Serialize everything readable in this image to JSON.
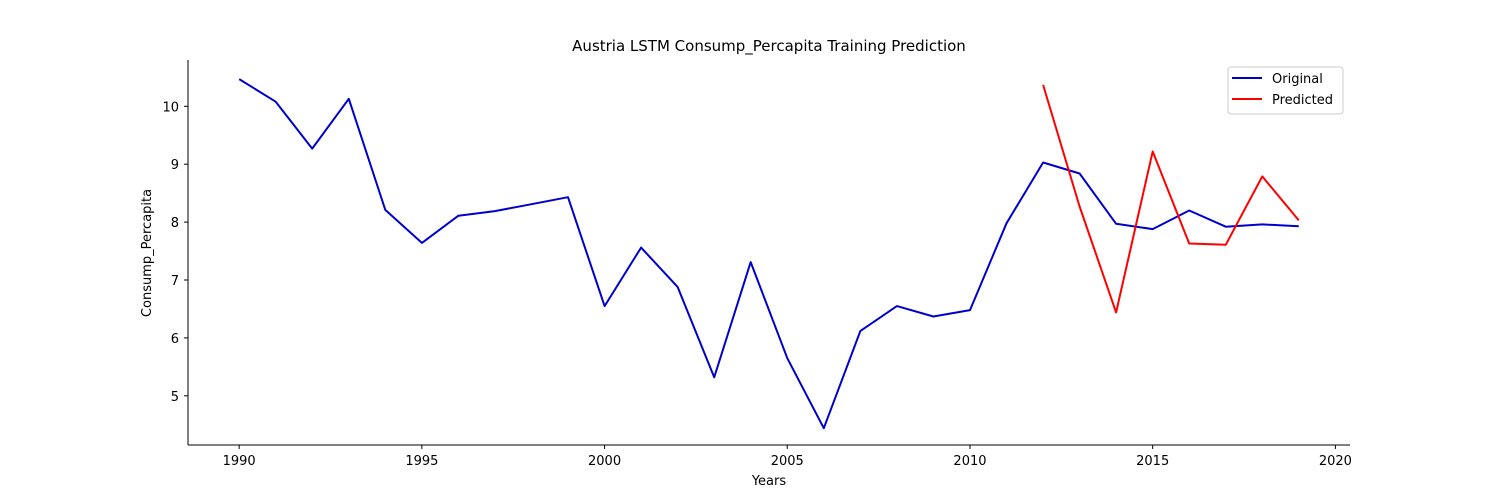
{
  "chart_data": {
    "type": "line",
    "title": "Austria LSTM Consump_Percapita Training Prediction",
    "xlabel": "Years",
    "ylabel": "Consump_Percapita",
    "xlim": [
      1988.6,
      2020.4
    ],
    "ylim": [
      4.15,
      10.8
    ],
    "x_ticks": [
      1990,
      1995,
      2000,
      2005,
      2010,
      2015,
      2020
    ],
    "y_ticks": [
      5,
      6,
      7,
      8,
      9,
      10
    ],
    "grid": false,
    "legend_position": "top-right",
    "series": [
      {
        "name": "Original",
        "color": "#0000cc",
        "x": [
          1990,
          1991,
          1992,
          1993,
          1994,
          1995,
          1996,
          1997,
          1998,
          1999,
          2000,
          2001,
          2002,
          2003,
          2004,
          2005,
          2006,
          2007,
          2008,
          2009,
          2010,
          2011,
          2012,
          2013,
          2014,
          2015,
          2016,
          2017,
          2018,
          2019
        ],
        "values": [
          10.47,
          10.08,
          9.27,
          10.13,
          8.21,
          7.64,
          8.11,
          8.19,
          8.31,
          8.43,
          6.55,
          7.56,
          6.88,
          5.32,
          7.31,
          5.65,
          4.44,
          6.12,
          6.55,
          6.37,
          6.48,
          7.98,
          9.03,
          8.84,
          7.97,
          7.88,
          8.2,
          7.92,
          7.96,
          7.93
        ]
      },
      {
        "name": "Predicted",
        "color": "#ff0000",
        "x": [
          2012,
          2013,
          2014,
          2015,
          2016,
          2017,
          2018,
          2019
        ],
        "values": [
          10.37,
          8.27,
          6.44,
          9.22,
          7.63,
          7.61,
          8.79,
          8.03
        ]
      }
    ]
  }
}
